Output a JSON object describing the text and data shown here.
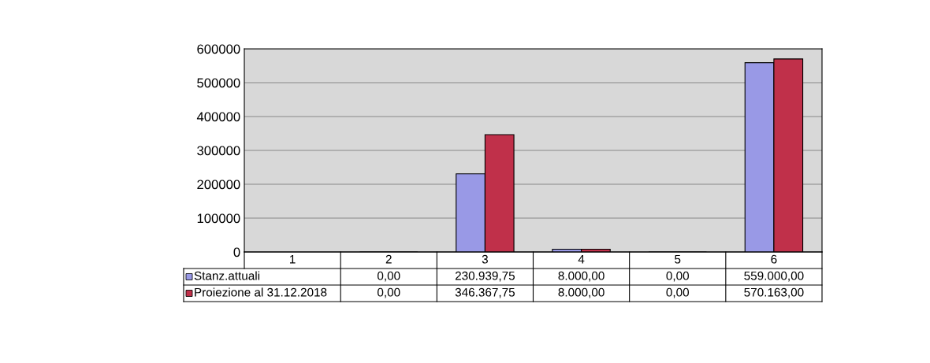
{
  "chart_data": {
    "type": "bar",
    "categories": [
      "1",
      "2",
      "3",
      "4",
      "5",
      "6"
    ],
    "series": [
      {
        "name": "Stanz.attuali",
        "color": "#9999e6",
        "values": [
          null,
          0,
          230939.75,
          8000,
          0,
          559000
        ],
        "value_labels": [
          null,
          "0,00",
          "230.939,75",
          "8.000,00",
          "0,00",
          "559.000,00"
        ]
      },
      {
        "name": "Proiezione al 31.12.2018",
        "color": "#c0304a",
        "values": [
          null,
          0,
          346367.75,
          8000,
          0,
          570163
        ],
        "value_labels": [
          null,
          "0,00",
          "346.367,75",
          "8.000,00",
          "0,00",
          "570.163,00"
        ]
      }
    ],
    "ylim": [
      0,
      600000
    ],
    "yticks": [
      0,
      100000,
      200000,
      300000,
      400000,
      500000,
      600000
    ],
    "grid": "y",
    "legend": "bottom"
  }
}
